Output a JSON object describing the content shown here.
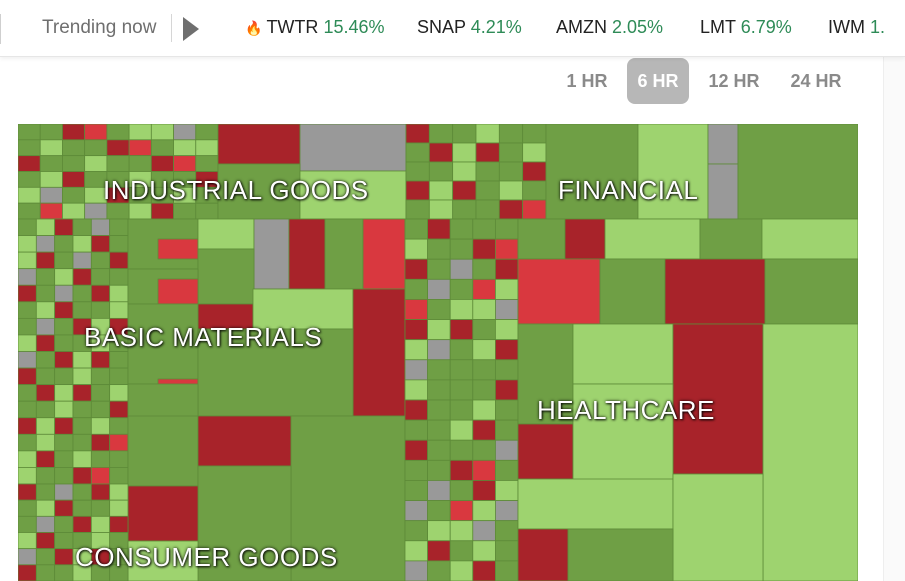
{
  "trending": {
    "label": "Trending now",
    "tickers": [
      {
        "symbol": "TWTR",
        "change": "15.46%",
        "hot": true
      },
      {
        "symbol": "SNAP",
        "change": "4.21%"
      },
      {
        "symbol": "AMZN",
        "change": "2.05%"
      },
      {
        "symbol": "LMT",
        "change": "6.79%"
      },
      {
        "symbol": "IWM",
        "change": "1."
      }
    ]
  },
  "timeframes": {
    "options": [
      "1 HR",
      "6 HR",
      "12 HR",
      "24 HR"
    ],
    "selected": "6 HR"
  },
  "treemap": {
    "sectors": [
      "INDUSTRIAL GOODS",
      "FINANCIAL",
      "BASIC MATERIALS",
      "HEALTHCARE",
      "CONSUMER GOODS"
    ]
  },
  "colors": {
    "strong_down": "#a8232a",
    "down": "#d9383f",
    "flat": "#999999",
    "up": "#6f9f45",
    "strong_up": "#9ed36f"
  }
}
